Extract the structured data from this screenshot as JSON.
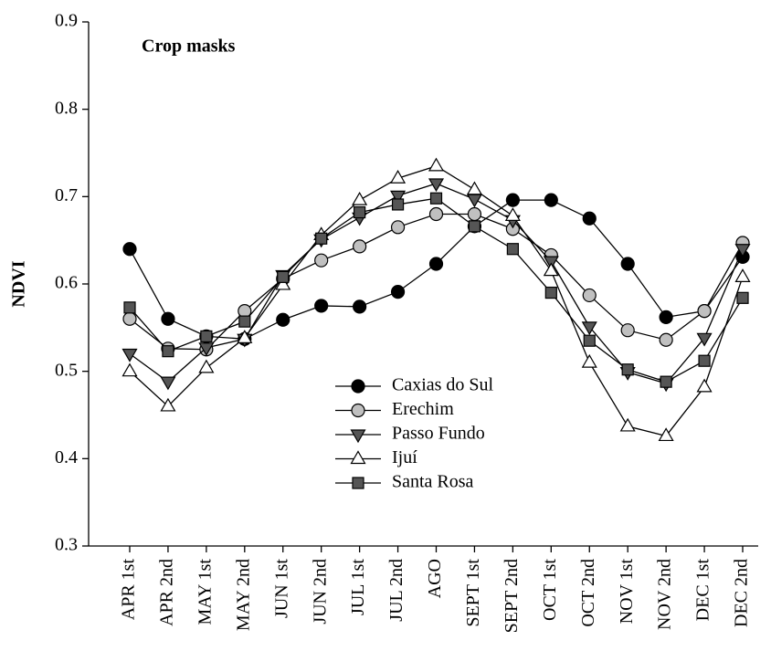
{
  "chart_data": {
    "type": "line",
    "title": "Crop masks",
    "y_label": "NDVI",
    "categories": [
      "APR 1st",
      "APR 2nd",
      "MAY 1st",
      "MAY 2nd",
      "JUN 1st",
      "JUN 2nd",
      "JUL 1st",
      "JUL 2nd",
      "AGO",
      "SEPT 1st",
      "SEPT 2nd",
      "OCT 1st",
      "OCT 2nd",
      "NOV 1st",
      "NOV 2nd",
      "DEC 1st",
      "DEC 2nd"
    ],
    "ylim": [
      0.3,
      0.9
    ],
    "yticks": [
      0.3,
      0.4,
      0.5,
      0.6,
      0.7,
      0.8,
      0.9
    ],
    "series": [
      {
        "name": "Caxias do Sul",
        "color": "#000000",
        "marker": "circle",
        "values": [
          0.64,
          0.56,
          0.54,
          0.537,
          0.559,
          0.575,
          0.574,
          0.591,
          0.623,
          0.666,
          0.696,
          0.696,
          0.675,
          0.623,
          0.562,
          0.569,
          0.631
        ]
      },
      {
        "name": "Erechim",
        "color": "#c0c0c0",
        "marker": "circle",
        "values": [
          0.56,
          0.526,
          0.525,
          0.569,
          0.606,
          0.627,
          0.643,
          0.665,
          0.68,
          0.68,
          0.663,
          0.633,
          0.587,
          0.547,
          0.536,
          0.569,
          0.647
        ]
      },
      {
        "name": "Passo Fundo",
        "color": "#555555",
        "marker": "triangle-down",
        "values": [
          0.52,
          0.488,
          0.527,
          0.537,
          0.61,
          0.651,
          0.676,
          0.701,
          0.715,
          0.697,
          0.673,
          0.626,
          0.551,
          0.499,
          0.486,
          0.538,
          0.64
        ]
      },
      {
        "name": "Ijuí",
        "color": "#ffffff",
        "marker": "triangle-up",
        "values": [
          0.5,
          0.46,
          0.504,
          0.538,
          0.599,
          0.656,
          0.696,
          0.721,
          0.735,
          0.708,
          0.678,
          0.615,
          0.51,
          0.437,
          0.426,
          0.482,
          0.608
        ]
      },
      {
        "name": "Santa Rosa",
        "color": "#555555",
        "marker": "square",
        "values": [
          0.573,
          0.523,
          0.54,
          0.557,
          0.608,
          0.652,
          0.682,
          0.691,
          0.698,
          0.666,
          0.64,
          0.59,
          0.535,
          0.502,
          0.488,
          0.512,
          0.584
        ]
      }
    ]
  }
}
